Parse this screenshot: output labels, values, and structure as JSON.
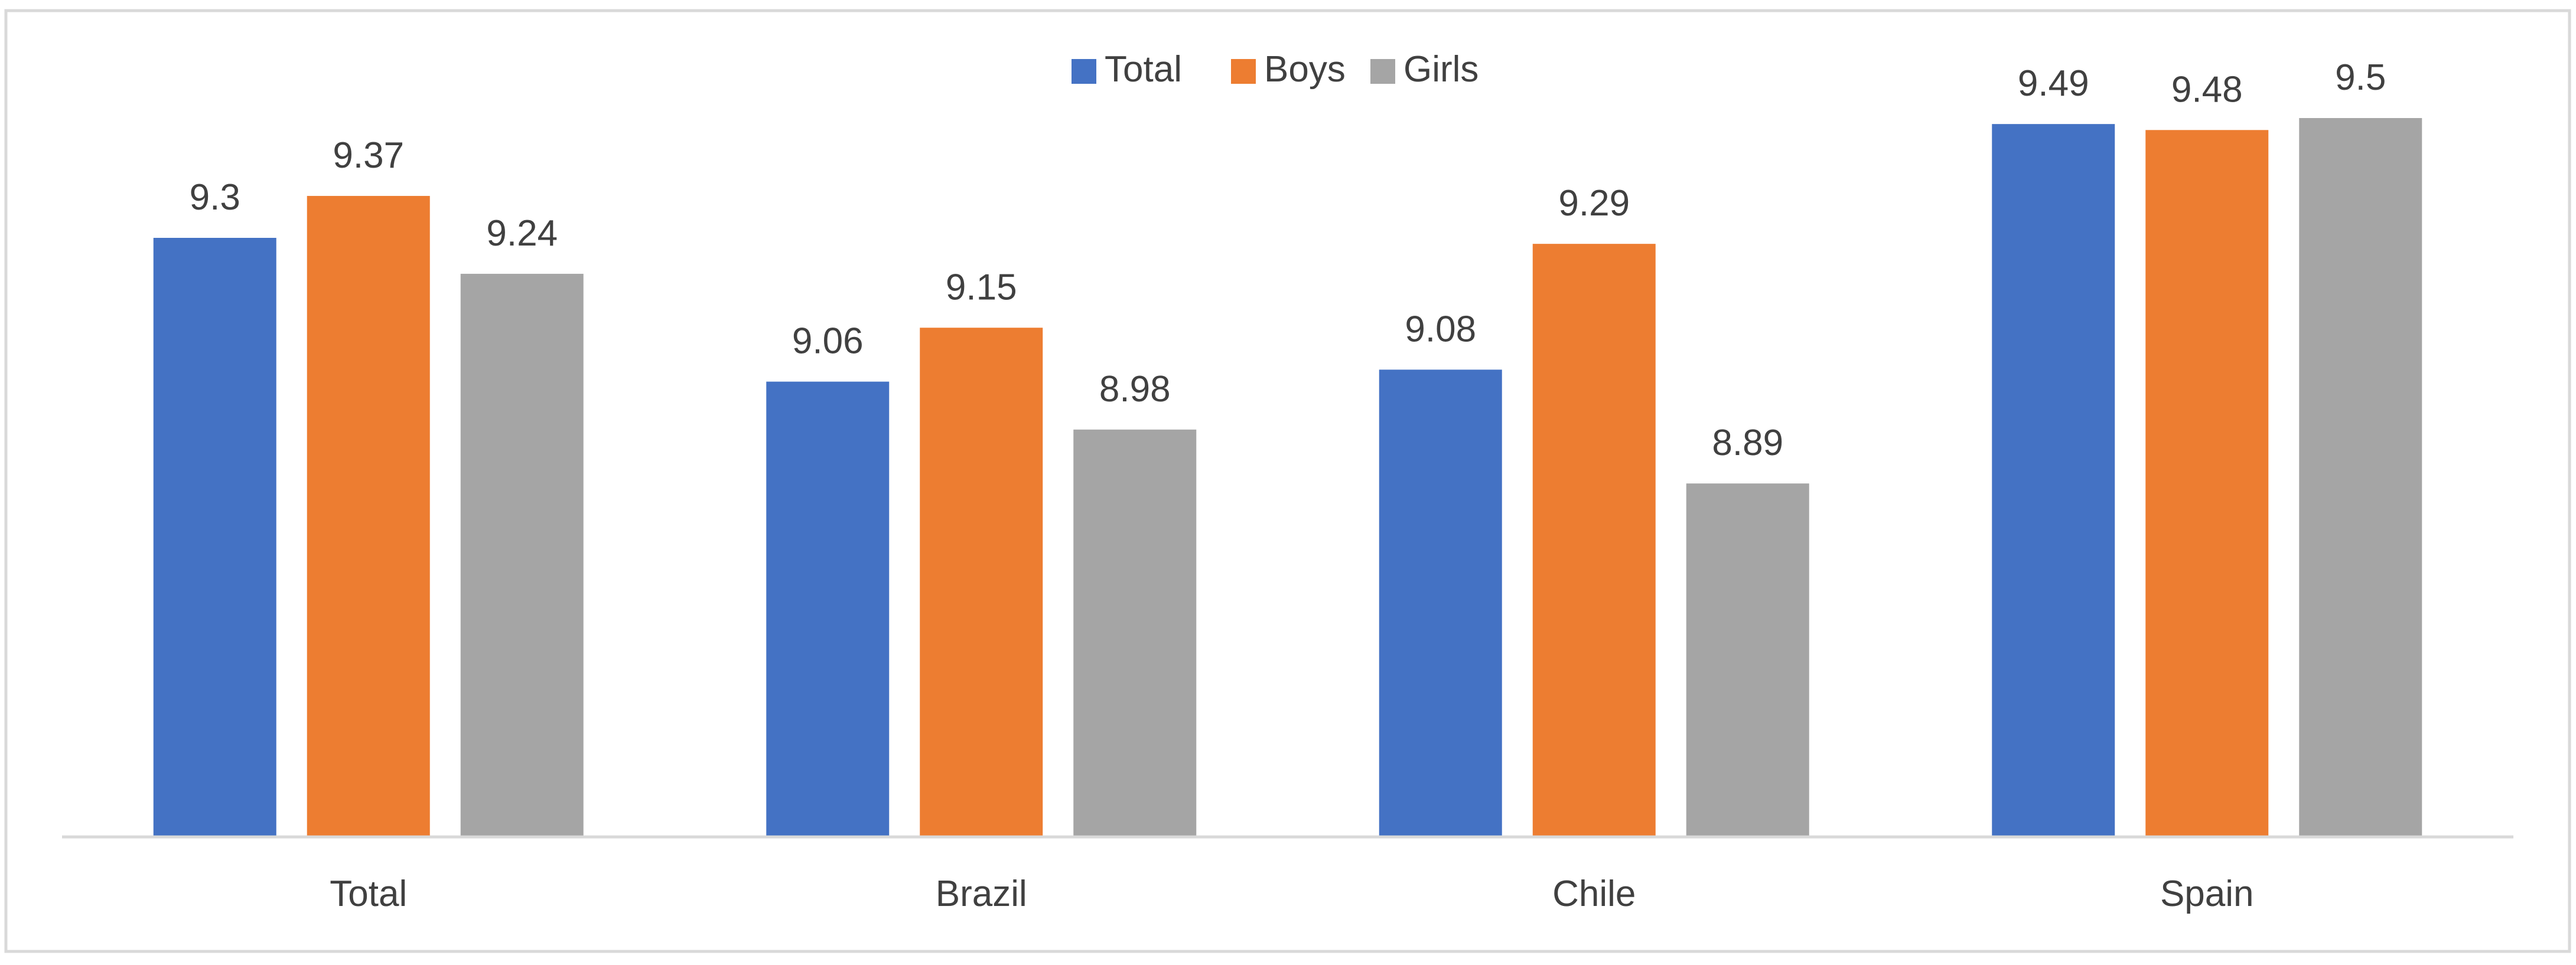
{
  "chart_data": {
    "type": "bar",
    "title": "",
    "xlabel": "",
    "ylabel": "",
    "legend_position": "top-center",
    "grid": false,
    "categories": [
      "Total",
      "Brazil",
      "Chile",
      "Spain"
    ],
    "series": [
      {
        "name": "Total",
        "color": "#4472C4",
        "values": [
          9.3,
          9.06,
          9.08,
          9.49
        ],
        "labels": [
          "9.3",
          "9.06",
          "9.08",
          "9.49"
        ]
      },
      {
        "name": "Boys",
        "color": "#ED7D31",
        "values": [
          9.37,
          9.15,
          9.29,
          9.48
        ],
        "labels": [
          "9.37",
          "9.15",
          "9.29",
          "9.48"
        ]
      },
      {
        "name": "Girls",
        "color": "#A5A5A5",
        "values": [
          9.24,
          8.98,
          8.89,
          9.5
        ],
        "labels": [
          "9.24",
          "8.98",
          "8.89",
          "9.5"
        ]
      }
    ],
    "ylim": [
      8.3,
      9.6
    ]
  },
  "colors": {
    "axis": "#D9D9D9",
    "border": "#D9D9D9",
    "text": "#404040"
  }
}
